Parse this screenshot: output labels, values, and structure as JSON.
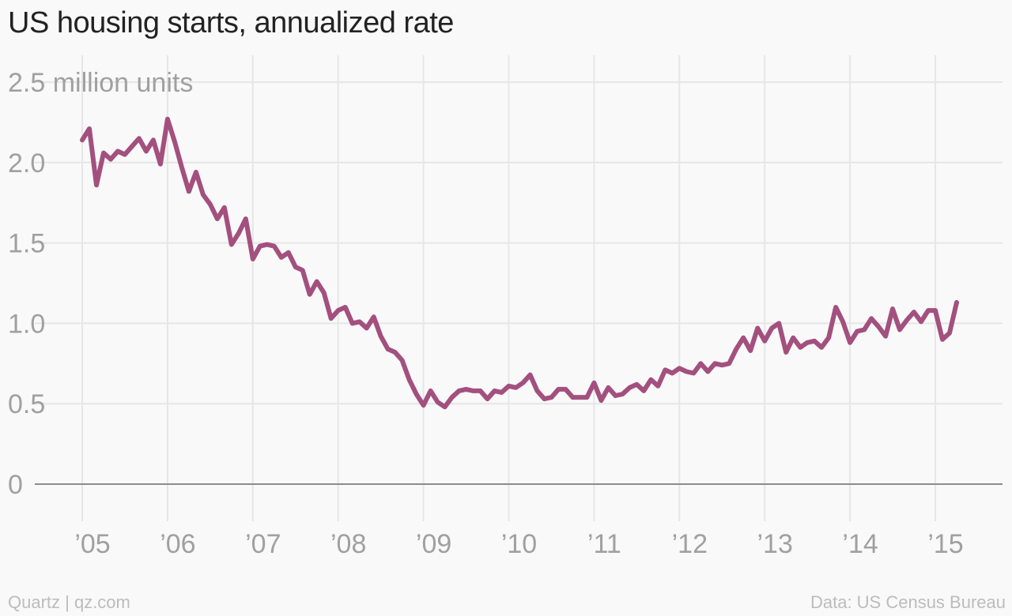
{
  "title": "US housing starts, annualized rate",
  "footer": {
    "source_left": "Quartz | qz.com",
    "source_right": "Data: US Census Bureau"
  },
  "colors": {
    "line": "#a3507f",
    "grid": "#e6e6e6",
    "baseline": "#8c8c8c",
    "tick": "#a0a0a0",
    "background": "#f9f9f9"
  },
  "chart_data": {
    "type": "line",
    "title": "US housing starts, annualized rate",
    "ylabel": "million units",
    "ylim": [
      0,
      2.5
    ],
    "yticks": [
      {
        "value": 0,
        "label": "0"
      },
      {
        "value": 0.5,
        "label": "0.5"
      },
      {
        "value": 1.0,
        "label": "1.0"
      },
      {
        "value": 1.5,
        "label": "1.5"
      },
      {
        "value": 2.0,
        "label": "2.0"
      },
      {
        "value": 2.5,
        "label": "2.5 million units"
      }
    ],
    "xlim": [
      2004.9,
      2015.7
    ],
    "xticks": [
      {
        "value": 2005,
        "label": "’05"
      },
      {
        "value": 2006,
        "label": "’06"
      },
      {
        "value": 2007,
        "label": "’07"
      },
      {
        "value": 2008,
        "label": "’08"
      },
      {
        "value": 2009,
        "label": "’09"
      },
      {
        "value": 2010,
        "label": "’10"
      },
      {
        "value": 2011,
        "label": "’11"
      },
      {
        "value": 2012,
        "label": "’12"
      },
      {
        "value": 2013,
        "label": "’13"
      },
      {
        "value": 2014,
        "label": "’14"
      },
      {
        "value": 2015,
        "label": "’15"
      }
    ],
    "grid": true,
    "series": [
      {
        "x_start": "2005-01",
        "frequency": "monthly",
        "values": [
          2.14,
          2.21,
          1.86,
          2.06,
          2.02,
          2.07,
          2.05,
          2.1,
          2.15,
          2.07,
          2.14,
          1.99,
          2.27,
          2.13,
          1.97,
          1.82,
          1.94,
          1.8,
          1.74,
          1.65,
          1.72,
          1.49,
          1.56,
          1.65,
          1.4,
          1.48,
          1.49,
          1.48,
          1.41,
          1.44,
          1.35,
          1.33,
          1.18,
          1.26,
          1.19,
          1.03,
          1.08,
          1.1,
          1.0,
          1.01,
          0.97,
          1.04,
          0.92,
          0.84,
          0.82,
          0.77,
          0.65,
          0.56,
          0.49,
          0.58,
          0.51,
          0.48,
          0.54,
          0.58,
          0.59,
          0.58,
          0.58,
          0.53,
          0.58,
          0.57,
          0.61,
          0.6,
          0.63,
          0.68,
          0.58,
          0.53,
          0.54,
          0.59,
          0.59,
          0.54,
          0.54,
          0.54,
          0.63,
          0.52,
          0.6,
          0.55,
          0.56,
          0.6,
          0.62,
          0.58,
          0.65,
          0.61,
          0.71,
          0.69,
          0.72,
          0.7,
          0.69,
          0.75,
          0.7,
          0.75,
          0.74,
          0.75,
          0.84,
          0.91,
          0.83,
          0.97,
          0.89,
          0.97,
          1.0,
          0.82,
          0.91,
          0.85,
          0.88,
          0.89,
          0.85,
          0.91,
          1.1,
          1.01,
          0.88,
          0.95,
          0.96,
          1.03,
          0.98,
          0.92,
          1.09,
          0.96,
          1.02,
          1.07,
          1.01,
          1.08,
          1.08,
          0.9,
          0.94,
          1.13
        ]
      }
    ]
  }
}
